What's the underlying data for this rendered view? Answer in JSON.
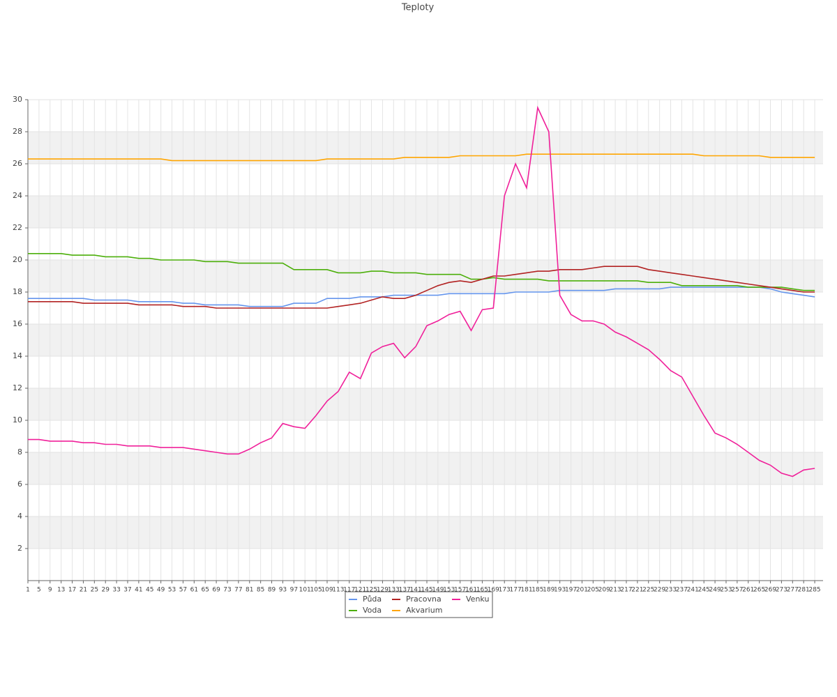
{
  "chart_data": {
    "type": "line",
    "title": "Teploty",
    "x": [
      1,
      5,
      9,
      13,
      17,
      21,
      25,
      29,
      33,
      37,
      41,
      45,
      49,
      53,
      57,
      61,
      65,
      69,
      73,
      77,
      81,
      85,
      89,
      93,
      97,
      101,
      105,
      109,
      113,
      117,
      121,
      125,
      129,
      133,
      137,
      141,
      145,
      149,
      153,
      157,
      161,
      165,
      169,
      173,
      177,
      181,
      185,
      189,
      193,
      197,
      201,
      205,
      209,
      213,
      217,
      221,
      225,
      229,
      233,
      237,
      241,
      245,
      249,
      253,
      257,
      261,
      265,
      269,
      273,
      277,
      281,
      285
    ],
    "xlim": [
      1,
      288
    ],
    "xticks": [
      1,
      5,
      9,
      13,
      17,
      21,
      25,
      29,
      33,
      37,
      41,
      45,
      49,
      53,
      57,
      61,
      65,
      69,
      73,
      77,
      81,
      85,
      89,
      93,
      97,
      101,
      105,
      109,
      113,
      117,
      121,
      125,
      129,
      133,
      137,
      141,
      145,
      149,
      153,
      157,
      161,
      165,
      169,
      173,
      177,
      181,
      185,
      189,
      193,
      197,
      201,
      205,
      209,
      213,
      217,
      221,
      225,
      229,
      233,
      237,
      241,
      245,
      249,
      253,
      257,
      261,
      265,
      269,
      273,
      277,
      281,
      285
    ],
    "ylim": [
      0,
      30
    ],
    "yticks": [
      2,
      4,
      6,
      8,
      10,
      12,
      14,
      16,
      18,
      20,
      22,
      24,
      26,
      28,
      30
    ],
    "grid": true,
    "legend": "bottom",
    "series": [
      {
        "name": "Půda",
        "color": "#6495ed",
        "values": [
          17.6,
          17.6,
          17.6,
          17.6,
          17.6,
          17.6,
          17.5,
          17.5,
          17.5,
          17.5,
          17.4,
          17.4,
          17.4,
          17.4,
          17.3,
          17.3,
          17.2,
          17.2,
          17.2,
          17.2,
          17.1,
          17.1,
          17.1,
          17.1,
          17.3,
          17.3,
          17.3,
          17.6,
          17.6,
          17.6,
          17.7,
          17.7,
          17.7,
          17.8,
          17.8,
          17.8,
          17.8,
          17.8,
          17.9,
          17.9,
          17.9,
          17.9,
          17.9,
          17.9,
          18.0,
          18.0,
          18.0,
          18.0,
          18.1,
          18.1,
          18.1,
          18.1,
          18.1,
          18.2,
          18.2,
          18.2,
          18.2,
          18.2,
          18.3,
          18.3,
          18.3,
          18.3,
          18.3,
          18.3,
          18.3,
          18.3,
          18.3,
          18.2,
          18.0,
          17.9,
          17.8,
          17.7
        ]
      },
      {
        "name": "Voda",
        "color": "#4caf0a",
        "values": [
          20.4,
          20.4,
          20.4,
          20.4,
          20.3,
          20.3,
          20.3,
          20.2,
          20.2,
          20.2,
          20.1,
          20.1,
          20.0,
          20.0,
          20.0,
          20.0,
          19.9,
          19.9,
          19.9,
          19.8,
          19.8,
          19.8,
          19.8,
          19.8,
          19.4,
          19.4,
          19.4,
          19.4,
          19.2,
          19.2,
          19.2,
          19.3,
          19.3,
          19.2,
          19.2,
          19.2,
          19.1,
          19.1,
          19.1,
          19.1,
          18.8,
          18.8,
          18.9,
          18.8,
          18.8,
          18.8,
          18.8,
          18.7,
          18.7,
          18.7,
          18.7,
          18.7,
          18.7,
          18.7,
          18.7,
          18.7,
          18.6,
          18.6,
          18.6,
          18.4,
          18.4,
          18.4,
          18.4,
          18.4,
          18.4,
          18.3,
          18.3,
          18.3,
          18.3,
          18.2,
          18.1,
          18.1
        ]
      },
      {
        "name": "Pracovna",
        "color": "#b22222",
        "values": [
          17.4,
          17.4,
          17.4,
          17.4,
          17.4,
          17.3,
          17.3,
          17.3,
          17.3,
          17.3,
          17.2,
          17.2,
          17.2,
          17.2,
          17.1,
          17.1,
          17.1,
          17.0,
          17.0,
          17.0,
          17.0,
          17.0,
          17.0,
          17.0,
          17.0,
          17.0,
          17.0,
          17.0,
          17.1,
          17.2,
          17.3,
          17.5,
          17.7,
          17.6,
          17.6,
          17.8,
          18.1,
          18.4,
          18.6,
          18.7,
          18.6,
          18.8,
          19.0,
          19.0,
          19.1,
          19.2,
          19.3,
          19.3,
          19.4,
          19.4,
          19.4,
          19.5,
          19.6,
          19.6,
          19.6,
          19.6,
          19.4,
          19.3,
          19.2,
          19.1,
          19.0,
          18.9,
          18.8,
          18.7,
          18.6,
          18.5,
          18.4,
          18.3,
          18.2,
          18.1,
          18.0,
          18.0
        ]
      },
      {
        "name": "Akvarium",
        "color": "#ffa500",
        "values": [
          26.3,
          26.3,
          26.3,
          26.3,
          26.3,
          26.3,
          26.3,
          26.3,
          26.3,
          26.3,
          26.3,
          26.3,
          26.3,
          26.2,
          26.2,
          26.2,
          26.2,
          26.2,
          26.2,
          26.2,
          26.2,
          26.2,
          26.2,
          26.2,
          26.2,
          26.2,
          26.2,
          26.3,
          26.3,
          26.3,
          26.3,
          26.3,
          26.3,
          26.3,
          26.4,
          26.4,
          26.4,
          26.4,
          26.4,
          26.5,
          26.5,
          26.5,
          26.5,
          26.5,
          26.5,
          26.6,
          26.6,
          26.6,
          26.6,
          26.6,
          26.6,
          26.6,
          26.6,
          26.6,
          26.6,
          26.6,
          26.6,
          26.6,
          26.6,
          26.6,
          26.6,
          26.5,
          26.5,
          26.5,
          26.5,
          26.5,
          26.5,
          26.4,
          26.4,
          26.4,
          26.4,
          26.4
        ]
      },
      {
        "name": "Venku",
        "color": "#f0209a",
        "values": [
          8.8,
          8.8,
          8.7,
          8.7,
          8.7,
          8.6,
          8.6,
          8.5,
          8.5,
          8.4,
          8.4,
          8.4,
          8.3,
          8.3,
          8.3,
          8.2,
          8.1,
          8.0,
          7.9,
          7.9,
          8.2,
          8.6,
          8.9,
          9.8,
          9.6,
          9.5,
          10.3,
          11.2,
          11.8,
          13.0,
          12.6,
          14.2,
          14.6,
          14.8,
          13.9,
          14.6,
          15.9,
          16.2,
          16.6,
          16.8,
          15.6,
          16.9,
          17.0,
          24.0,
          26.0,
          24.5,
          29.5,
          28.0,
          17.8,
          16.6,
          16.2,
          16.2,
          16.0,
          15.5,
          15.2,
          14.8,
          14.4,
          13.8,
          13.1,
          12.7,
          11.5,
          10.3,
          9.2,
          8.9,
          8.5,
          8.0,
          7.5,
          7.2,
          6.7,
          6.5,
          6.9,
          7.0
        ]
      }
    ]
  }
}
